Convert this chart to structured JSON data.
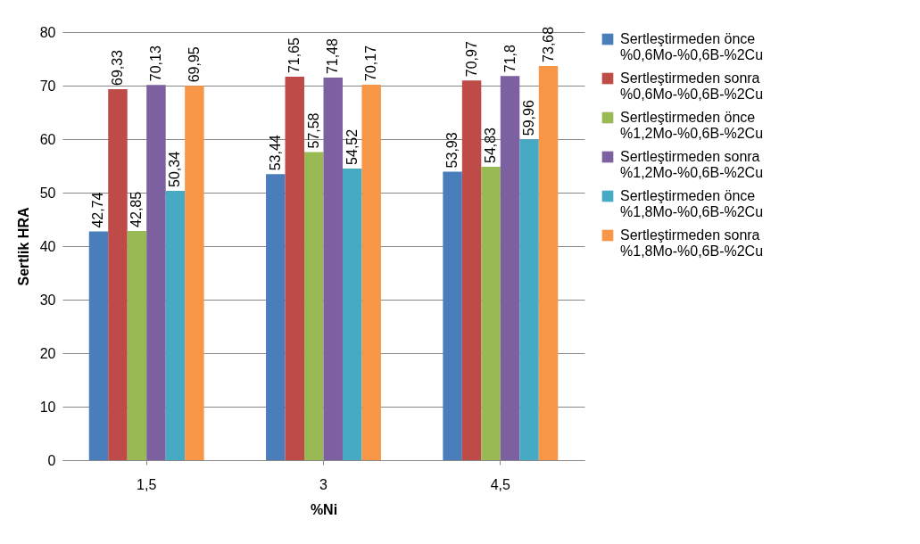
{
  "chart_data": {
    "type": "bar",
    "xlabel": "%Ni",
    "ylabel": "Sertlik HRA",
    "categories": [
      "1,5",
      "3",
      "4,5"
    ],
    "series": [
      {
        "name": "Sertleştirmeden önce %0,6Mo-%0,6B-%2Cu",
        "color": "#4a7ebb",
        "values": [
          42.74,
          53.44,
          53.93
        ],
        "value_labels": [
          "42,74",
          "53,44",
          "53,93"
        ]
      },
      {
        "name": "Sertleştirmeden sonra %0,6Mo-%0,6B-%2Cu",
        "color": "#be4b48",
        "values": [
          69.33,
          71.65,
          70.97
        ],
        "value_labels": [
          "69,33",
          "71,65",
          "70,97"
        ]
      },
      {
        "name": "Sertleştirmeden önce %1,2Mo-%0,6B-%2Cu",
        "color": "#98b954",
        "values": [
          42.85,
          57.58,
          54.83
        ],
        "value_labels": [
          "42,85",
          "57,58",
          "54,83"
        ]
      },
      {
        "name": "Sertleştirmeden sonra %1,2Mo-%0,6B-%2Cu",
        "color": "#7d60a0",
        "values": [
          70.13,
          71.48,
          71.8
        ],
        "value_labels": [
          "70,13",
          "71,48",
          "71,8"
        ]
      },
      {
        "name": "Sertleştirmeden önce %1,8Mo-%0,6B-%2Cu",
        "color": "#46aac5",
        "values": [
          50.34,
          54.52,
          59.96
        ],
        "value_labels": [
          "50,34",
          "54,52",
          "59,96"
        ]
      },
      {
        "name": "Sertleştirmeden sonra %1,8Mo-%0,6B-%2Cu",
        "color": "#f79646",
        "values": [
          69.95,
          70.17,
          73.68
        ],
        "value_labels": [
          "69,95",
          "70,17",
          "73,68"
        ]
      }
    ],
    "ylim": [
      0,
      80
    ],
    "yticks": [
      0,
      10,
      20,
      30,
      40,
      50,
      60,
      70,
      80
    ],
    "grid": "y",
    "legend": "right"
  }
}
